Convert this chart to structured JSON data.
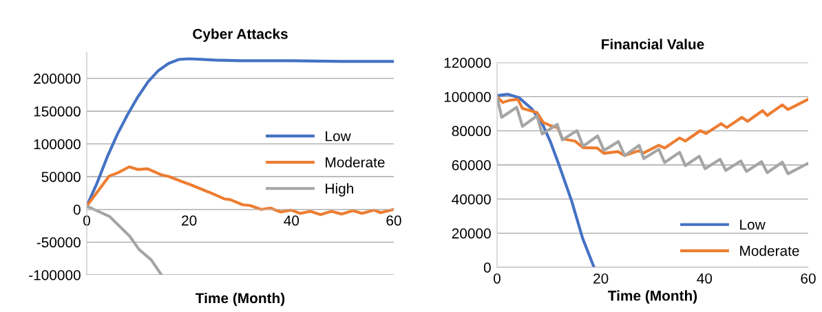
{
  "chart_data": [
    {
      "type": "line",
      "title": "Cyber Attacks",
      "xlabel": "Time (Month)",
      "xlim": [
        0,
        60
      ],
      "xticks": [
        0,
        20,
        40,
        60
      ],
      "ylim": [
        -100000,
        240000
      ],
      "yticks": [
        -100000,
        -50000,
        0,
        50000,
        100000,
        150000,
        200000
      ],
      "grid": "y",
      "legend": "right",
      "series": [
        {
          "name": "Low",
          "color": "#4472c4",
          "x": [
            0,
            2,
            4,
            6,
            8,
            10,
            12,
            14,
            16,
            18,
            20,
            25,
            30,
            40,
            50,
            60
          ],
          "values": [
            5000,
            40000,
            80000,
            115000,
            145000,
            172000,
            195000,
            212000,
            223000,
            229000,
            230000,
            228000,
            227000,
            227000,
            226000,
            226000
          ]
        },
        {
          "name": "Moderate",
          "color": "#ed7d31",
          "x": [
            0,
            4.4,
            6.1,
            8.3,
            9.9,
            11.9,
            14.5,
            16.1,
            18.8,
            20.2,
            23.3,
            24,
            26.9,
            28,
            30.5,
            31.9,
            34.1,
            35.9,
            37.9,
            39.9,
            41.7,
            43.7,
            45.7,
            47.8,
            49.8,
            52,
            53.8,
            56.1,
            57.4,
            60
          ],
          "values": [
            5000,
            51000,
            56000,
            65000,
            61000,
            62000,
            53000,
            50000,
            42000,
            38000,
            28000,
            26000,
            16000,
            15000,
            7000,
            6000,
            0,
            2000,
            -4000,
            -1000,
            -6000,
            -3000,
            -8000,
            -3000,
            -7000,
            -2000,
            -6000,
            -1000,
            -5000,
            0
          ]
        },
        {
          "name": "High",
          "color": "#a5a5a5",
          "x": [
            0,
            4.5,
            8.4,
            10.2,
            12.6,
            14.6
          ],
          "values": [
            5000,
            -11000,
            -41000,
            -61000,
            -77000,
            -100000
          ]
        }
      ]
    },
    {
      "type": "line",
      "title": "Financial Value",
      "xlabel": "Time (Month)",
      "xlim": [
        0,
        60
      ],
      "xticks": [
        0,
        20,
        40,
        60
      ],
      "ylim": [
        0,
        120000
      ],
      "yticks": [
        0,
        20000,
        40000,
        60000,
        80000,
        100000,
        120000
      ],
      "grid": "y",
      "legend": "lower right",
      "series": [
        {
          "name": "Low",
          "color": "#4472c4",
          "x": [
            0,
            2.1,
            4.2,
            6.7,
            8.8,
            10.3,
            11.9,
            14.4,
            16.5,
            18.7
          ],
          "values": [
            100600,
            101400,
            99500,
            92900,
            83600,
            73500,
            60400,
            38700,
            17000,
            0
          ]
        },
        {
          "name": "Moderate",
          "color": "#ed7d31",
          "x": [
            0,
            1.1,
            2.4,
            4,
            4.9,
            6.4,
            7.7,
            8.9,
            10.4,
            11.7,
            12.6,
            15,
            16.6,
            19.3,
            20.6,
            23.3,
            24.6,
            27.2,
            28.3,
            31.2,
            32.3,
            35.2,
            36.3,
            39.2,
            40.3,
            43.2,
            44.3,
            47.2,
            48.3,
            51.2,
            52.1,
            55,
            56.1,
            60
          ],
          "values": [
            100000,
            96600,
            97900,
            98400,
            93100,
            91800,
            90700,
            84900,
            82900,
            81900,
            75300,
            74000,
            70100,
            69900,
            66800,
            67800,
            65500,
            68200,
            67100,
            71500,
            69900,
            75800,
            74000,
            80100,
            78400,
            84200,
            81900,
            87900,
            85600,
            91800,
            89000,
            95200,
            92500,
            98500
          ]
        },
        {
          "color": "#a5a5a5",
          "x": [
            0,
            0.9,
            3.8,
            4.9,
            7.7,
            8.7,
            11.6,
            12.6,
            15.4,
            16.6,
            19.4,
            20.6,
            23.4,
            24.6,
            27.4,
            28.3,
            31.2,
            32.3,
            35.2,
            36.3,
            39,
            40.1,
            43,
            44.1,
            47,
            48.1,
            51,
            52.1,
            55,
            56.1,
            60
          ],
          "values": [
            100000,
            87900,
            93800,
            82600,
            88800,
            78100,
            83800,
            74700,
            80100,
            71000,
            77000,
            68500,
            73700,
            65500,
            71500,
            63700,
            69200,
            61400,
            67400,
            59600,
            65100,
            57800,
            63300,
            56800,
            62300,
            56200,
            61900,
            55500,
            61600,
            54800,
            61000
          ]
        }
      ]
    }
  ]
}
